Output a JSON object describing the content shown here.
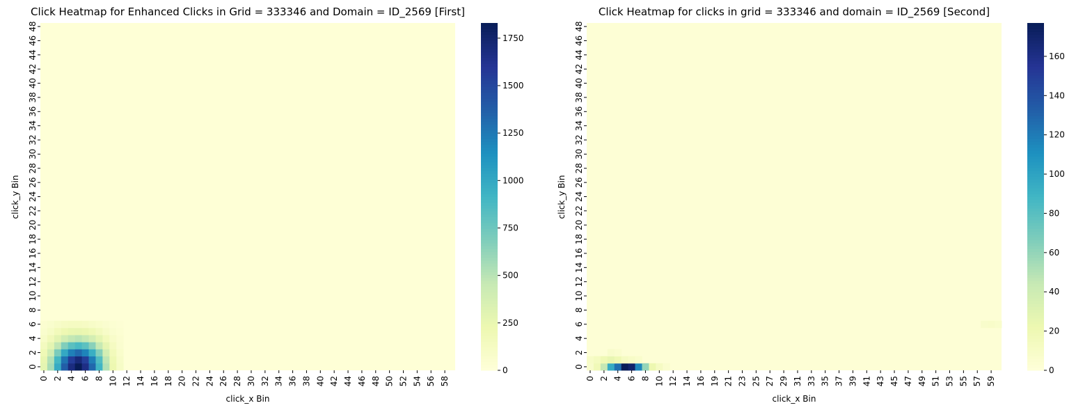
{
  "chart_data": [
    {
      "type": "heatmap",
      "title": "Click Heatmap for Enhanced Clicks in Grid = 333346 and Domain = ID_2569 [First]",
      "xlabel": "click_x Bin",
      "ylabel": "click_y Bin",
      "x_bins": 60,
      "y_bins": 49,
      "x_tick_labels": [
        "0",
        "2",
        "4",
        "6",
        "8",
        "10",
        "12",
        "14",
        "16",
        "18",
        "20",
        "22",
        "24",
        "26",
        "28",
        "30",
        "32",
        "34",
        "36",
        "38",
        "40",
        "42",
        "44",
        "46",
        "48",
        "50",
        "52",
        "54",
        "56",
        "58"
      ],
      "y_tick_labels": [
        "0",
        "2",
        "4",
        "6",
        "8",
        "10",
        "12",
        "14",
        "16",
        "18",
        "20",
        "22",
        "24",
        "26",
        "28",
        "30",
        "32",
        "34",
        "36",
        "38",
        "40",
        "42",
        "44",
        "46",
        "48"
      ],
      "colormap": "YlGnBu",
      "colorbar_range": [
        0,
        1830
      ],
      "colorbar_ticks": [
        "0",
        "250",
        "500",
        "750",
        "1000",
        "1250",
        "1500",
        "1750"
      ],
      "hotspot": {
        "peak_x": 5,
        "peak_y": 0,
        "peak_value": 1830,
        "background_value": 15
      },
      "cells": [
        {
          "x": 0,
          "y": 0,
          "value": 280
        },
        {
          "x": 1,
          "y": 0,
          "value": 560
        },
        {
          "x": 2,
          "y": 0,
          "value": 980
        },
        {
          "x": 3,
          "y": 0,
          "value": 1380
        },
        {
          "x": 4,
          "y": 0,
          "value": 1680
        },
        {
          "x": 5,
          "y": 0,
          "value": 1830
        },
        {
          "x": 6,
          "y": 0,
          "value": 1660
        },
        {
          "x": 7,
          "y": 0,
          "value": 1330
        },
        {
          "x": 8,
          "y": 0,
          "value": 930
        },
        {
          "x": 9,
          "y": 0,
          "value": 520
        },
        {
          "x": 10,
          "y": 0,
          "value": 230
        },
        {
          "x": 11,
          "y": 0,
          "value": 110
        },
        {
          "x": 0,
          "y": 1,
          "value": 260
        },
        {
          "x": 1,
          "y": 1,
          "value": 520
        },
        {
          "x": 2,
          "y": 1,
          "value": 900
        },
        {
          "x": 3,
          "y": 1,
          "value": 1280
        },
        {
          "x": 4,
          "y": 1,
          "value": 1560
        },
        {
          "x": 5,
          "y": 1,
          "value": 1700
        },
        {
          "x": 6,
          "y": 1,
          "value": 1540
        },
        {
          "x": 7,
          "y": 1,
          "value": 1230
        },
        {
          "x": 8,
          "y": 1,
          "value": 860
        },
        {
          "x": 9,
          "y": 1,
          "value": 480
        },
        {
          "x": 10,
          "y": 1,
          "value": 210
        },
        {
          "x": 11,
          "y": 1,
          "value": 100
        },
        {
          "x": 0,
          "y": 2,
          "value": 200
        },
        {
          "x": 1,
          "y": 2,
          "value": 400
        },
        {
          "x": 2,
          "y": 2,
          "value": 700
        },
        {
          "x": 3,
          "y": 2,
          "value": 1000
        },
        {
          "x": 4,
          "y": 2,
          "value": 1220
        },
        {
          "x": 5,
          "y": 2,
          "value": 1320
        },
        {
          "x": 6,
          "y": 2,
          "value": 1200
        },
        {
          "x": 7,
          "y": 2,
          "value": 960
        },
        {
          "x": 8,
          "y": 2,
          "value": 670
        },
        {
          "x": 9,
          "y": 2,
          "value": 380
        },
        {
          "x": 10,
          "y": 2,
          "value": 170
        },
        {
          "x": 11,
          "y": 2,
          "value": 80
        },
        {
          "x": 0,
          "y": 3,
          "value": 150
        },
        {
          "x": 1,
          "y": 3,
          "value": 280
        },
        {
          "x": 2,
          "y": 3,
          "value": 480
        },
        {
          "x": 3,
          "y": 3,
          "value": 680
        },
        {
          "x": 4,
          "y": 3,
          "value": 820
        },
        {
          "x": 5,
          "y": 3,
          "value": 880
        },
        {
          "x": 6,
          "y": 3,
          "value": 810
        },
        {
          "x": 7,
          "y": 3,
          "value": 650
        },
        {
          "x": 8,
          "y": 3,
          "value": 460
        },
        {
          "x": 9,
          "y": 3,
          "value": 270
        },
        {
          "x": 10,
          "y": 3,
          "value": 130
        },
        {
          "x": 11,
          "y": 3,
          "value": 60
        },
        {
          "x": 0,
          "y": 4,
          "value": 100
        },
        {
          "x": 1,
          "y": 4,
          "value": 180
        },
        {
          "x": 2,
          "y": 4,
          "value": 290
        },
        {
          "x": 3,
          "y": 4,
          "value": 400
        },
        {
          "x": 4,
          "y": 4,
          "value": 470
        },
        {
          "x": 5,
          "y": 4,
          "value": 500
        },
        {
          "x": 6,
          "y": 4,
          "value": 460
        },
        {
          "x": 7,
          "y": 4,
          "value": 380
        },
        {
          "x": 8,
          "y": 4,
          "value": 280
        },
        {
          "x": 9,
          "y": 4,
          "value": 170
        },
        {
          "x": 10,
          "y": 4,
          "value": 90
        },
        {
          "x": 11,
          "y": 4,
          "value": 50
        },
        {
          "x": 0,
          "y": 5,
          "value": 70
        },
        {
          "x": 1,
          "y": 5,
          "value": 110
        },
        {
          "x": 2,
          "y": 5,
          "value": 170
        },
        {
          "x": 3,
          "y": 5,
          "value": 220
        },
        {
          "x": 4,
          "y": 5,
          "value": 250
        },
        {
          "x": 5,
          "y": 5,
          "value": 260
        },
        {
          "x": 6,
          "y": 5,
          "value": 240
        },
        {
          "x": 7,
          "y": 5,
          "value": 200
        },
        {
          "x": 8,
          "y": 5,
          "value": 150
        },
        {
          "x": 9,
          "y": 5,
          "value": 100
        },
        {
          "x": 10,
          "y": 5,
          "value": 60
        },
        {
          "x": 11,
          "y": 5,
          "value": 40
        },
        {
          "x": 0,
          "y": 6,
          "value": 50
        },
        {
          "x": 1,
          "y": 6,
          "value": 70
        },
        {
          "x": 2,
          "y": 6,
          "value": 100
        },
        {
          "x": 3,
          "y": 6,
          "value": 120
        },
        {
          "x": 4,
          "y": 6,
          "value": 130
        },
        {
          "x": 5,
          "y": 6,
          "value": 130
        },
        {
          "x": 6,
          "y": 6,
          "value": 120
        },
        {
          "x": 7,
          "y": 6,
          "value": 100
        },
        {
          "x": 8,
          "y": 6,
          "value": 80
        },
        {
          "x": 9,
          "y": 6,
          "value": 60
        },
        {
          "x": 10,
          "y": 6,
          "value": 40
        },
        {
          "x": 11,
          "y": 6,
          "value": 30
        }
      ]
    },
    {
      "type": "heatmap",
      "title": "Click Heatmap for clicks in grid = 333346 and domain = ID_2569 [Second]",
      "xlabel": "click_x Bin",
      "ylabel": "click_y Bin",
      "x_bins": 60,
      "y_bins": 49,
      "x_tick_labels": [
        "0",
        "2",
        "4",
        "6",
        "8",
        "10",
        "12",
        "14",
        "16",
        "19",
        "21",
        "23",
        "25",
        "27",
        "29",
        "31",
        "33",
        "35",
        "37",
        "39",
        "41",
        "43",
        "45",
        "47",
        "49",
        "51",
        "53",
        "55",
        "57",
        "59"
      ],
      "y_tick_labels": [
        "0",
        "2",
        "4",
        "6",
        "8",
        "10",
        "12",
        "14",
        "16",
        "18",
        "20",
        "22",
        "24",
        "26",
        "28",
        "30",
        "32",
        "34",
        "36",
        "38",
        "40",
        "42",
        "44",
        "46",
        "48"
      ],
      "colormap": "YlGnBu",
      "colorbar_range": [
        0,
        177
      ],
      "colorbar_ticks": [
        "0",
        "20",
        "40",
        "60",
        "80",
        "100",
        "120",
        "140",
        "160"
      ],
      "hotspot": {
        "peak_x": 5,
        "peak_y": 0,
        "peak_value": 177,
        "background_value": 2
      },
      "cells": [
        {
          "x": 0,
          "y": 0,
          "value": 8
        },
        {
          "x": 1,
          "y": 0,
          "value": 18
        },
        {
          "x": 2,
          "y": 0,
          "value": 45
        },
        {
          "x": 3,
          "y": 0,
          "value": 95
        },
        {
          "x": 4,
          "y": 0,
          "value": 125
        },
        {
          "x": 5,
          "y": 0,
          "value": 177
        },
        {
          "x": 6,
          "y": 0,
          "value": 170
        },
        {
          "x": 7,
          "y": 0,
          "value": 115
        },
        {
          "x": 8,
          "y": 0,
          "value": 60
        },
        {
          "x": 9,
          "y": 0,
          "value": 22
        },
        {
          "x": 10,
          "y": 0,
          "value": 12
        },
        {
          "x": 11,
          "y": 0,
          "value": 6
        },
        {
          "x": 0,
          "y": 1,
          "value": 10
        },
        {
          "x": 1,
          "y": 1,
          "value": 14
        },
        {
          "x": 2,
          "y": 1,
          "value": 20
        },
        {
          "x": 3,
          "y": 1,
          "value": 25
        },
        {
          "x": 4,
          "y": 1,
          "value": 20
        },
        {
          "x": 5,
          "y": 1,
          "value": 12
        },
        {
          "x": 6,
          "y": 1,
          "value": 10
        },
        {
          "x": 7,
          "y": 1,
          "value": 7
        },
        {
          "x": 3,
          "y": 2,
          "value": 8
        },
        {
          "x": 4,
          "y": 2,
          "value": 6
        },
        {
          "x": 57,
          "y": 6,
          "value": 8
        },
        {
          "x": 58,
          "y": 6,
          "value": 9
        },
        {
          "x": 59,
          "y": 6,
          "value": 7
        }
      ]
    }
  ]
}
